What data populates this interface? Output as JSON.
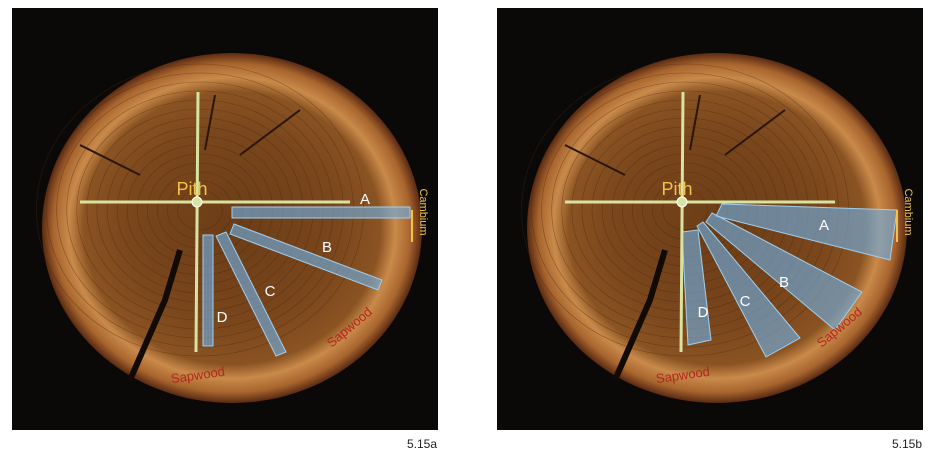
{
  "panels": [
    {
      "labels": {
        "pith": "Pith",
        "a": "A",
        "b": "B",
        "c": "C",
        "d": "D",
        "cambium": "Cambium",
        "sapwood_right": "Sapwood",
        "sapwood_bottom": "Sapwood"
      },
      "caption": "5.15a"
    },
    {
      "labels": {
        "pith": "Pith",
        "a": "A",
        "b": "B",
        "c": "C",
        "d": "D",
        "cambium": "Cambium",
        "sapwood_right": "Sapwood",
        "sapwood_bottom": "Sapwood"
      },
      "caption": "5.15b"
    }
  ]
}
